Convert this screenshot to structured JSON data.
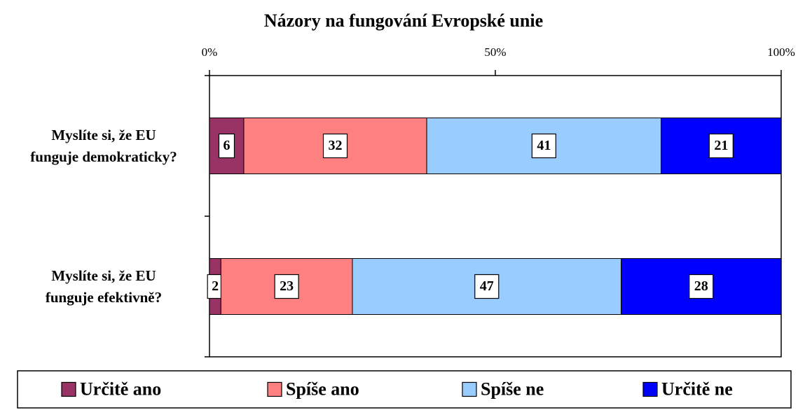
{
  "chart_data": {
    "type": "bar",
    "orientation": "horizontal",
    "stacked": true,
    "title": "Názory na fungování Evropské unie",
    "categories": [
      "Myslíte si, že EU\nfunguje demokraticky?",
      "Myslíte si, že EU\nfunguje efektivně?"
    ],
    "series": [
      {
        "name": "Určitě ano",
        "color": "#993366",
        "values": [
          6,
          2
        ]
      },
      {
        "name": "Spíše ano",
        "color": "#ff8080",
        "values": [
          32,
          23
        ]
      },
      {
        "name": "Spíše ne",
        "color": "#99ccff",
        "values": [
          41,
          47
        ]
      },
      {
        "name": "Určitě ne",
        "color": "#0000ff",
        "values": [
          21,
          28
        ]
      }
    ],
    "xlim": [
      0,
      100
    ],
    "xticks": [
      {
        "value": 0,
        "label": "0%"
      },
      {
        "value": 50,
        "label": "50%"
      },
      {
        "value": 100,
        "label": "100%"
      }
    ],
    "legend": "bottom"
  }
}
